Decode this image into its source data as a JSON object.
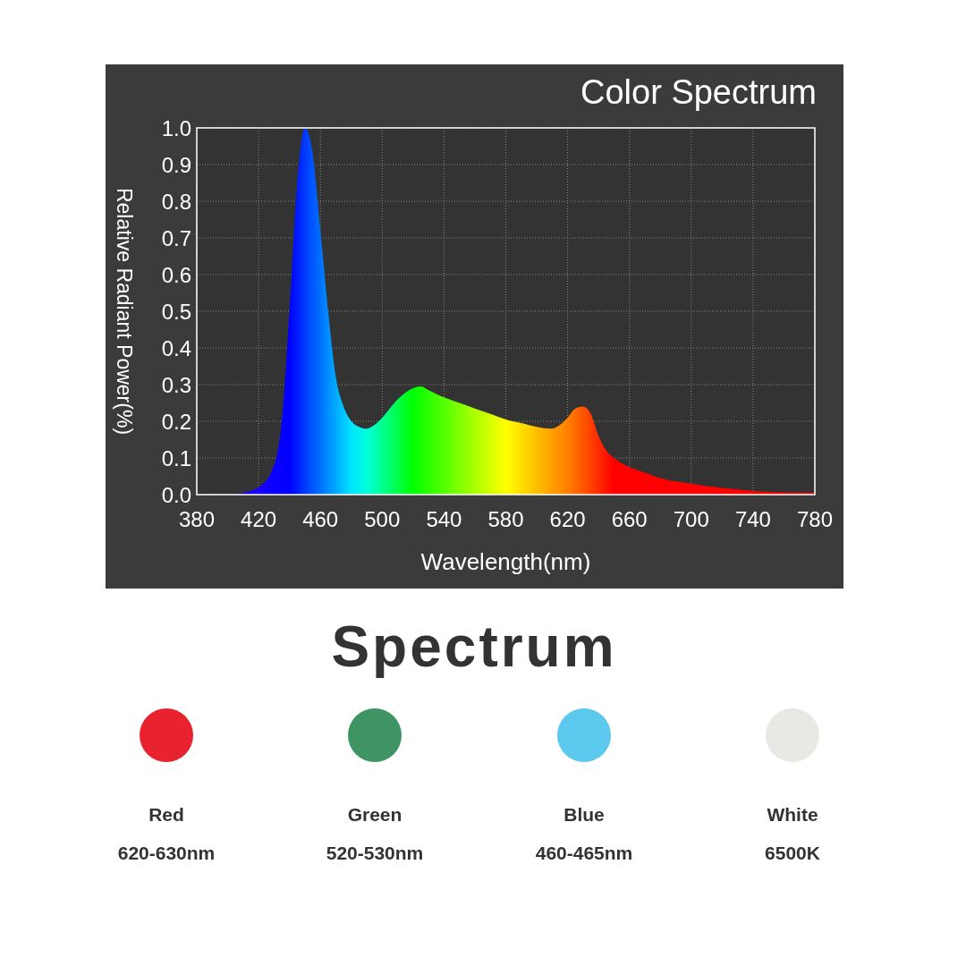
{
  "chart_data": {
    "type": "area",
    "title": "Color Spectrum",
    "xlabel": "Wavelength(nm)",
    "ylabel": "Relative Radiant Power(%)",
    "x": [
      380,
      400,
      410,
      420,
      430,
      435,
      440,
      445,
      450,
      455,
      460,
      465,
      470,
      475,
      480,
      485,
      490,
      495,
      500,
      510,
      520,
      525,
      530,
      540,
      550,
      560,
      570,
      580,
      590,
      600,
      610,
      615,
      620,
      625,
      630,
      635,
      640,
      645,
      650,
      660,
      670,
      680,
      700,
      720,
      740,
      760,
      780
    ],
    "series": [
      {
        "values": [
          0,
          0,
          0.005,
          0.02,
          0.08,
          0.2,
          0.5,
          0.85,
          1.0,
          0.93,
          0.72,
          0.5,
          0.32,
          0.24,
          0.2,
          0.185,
          0.18,
          0.19,
          0.21,
          0.26,
          0.29,
          0.295,
          0.285,
          0.265,
          0.25,
          0.235,
          0.22,
          0.205,
          0.195,
          0.185,
          0.18,
          0.19,
          0.21,
          0.235,
          0.24,
          0.22,
          0.16,
          0.12,
          0.1,
          0.075,
          0.06,
          0.045,
          0.03,
          0.018,
          0.01,
          0.006,
          0.005
        ]
      }
    ],
    "xlim": [
      380,
      780
    ],
    "xticks": [
      380,
      420,
      460,
      500,
      540,
      580,
      620,
      660,
      700,
      740,
      780
    ],
    "ylim": [
      0,
      1
    ],
    "yticks": [
      {
        "value": 0,
        "label": "0.0"
      },
      {
        "value": 0.1,
        "label": "0.1"
      },
      {
        "value": 0.2,
        "label": "0.2"
      },
      {
        "value": 0.3,
        "label": "0.3"
      },
      {
        "value": 0.4,
        "label": "0.4"
      },
      {
        "value": 0.5,
        "label": "0.5"
      },
      {
        "value": 0.6,
        "label": "0.6"
      },
      {
        "value": 0.7,
        "label": "0.7"
      },
      {
        "value": 0.8,
        "label": "0.8"
      },
      {
        "value": 0.9,
        "label": "0.9"
      },
      {
        "value": 1,
        "label": "1.0"
      }
    ],
    "grid": true,
    "annotations": [
      "Spectrum",
      "Red",
      "620-630nm",
      "Green",
      "520-530nm",
      "Blue",
      "460-465nm",
      "White",
      "6500K"
    ]
  }
}
